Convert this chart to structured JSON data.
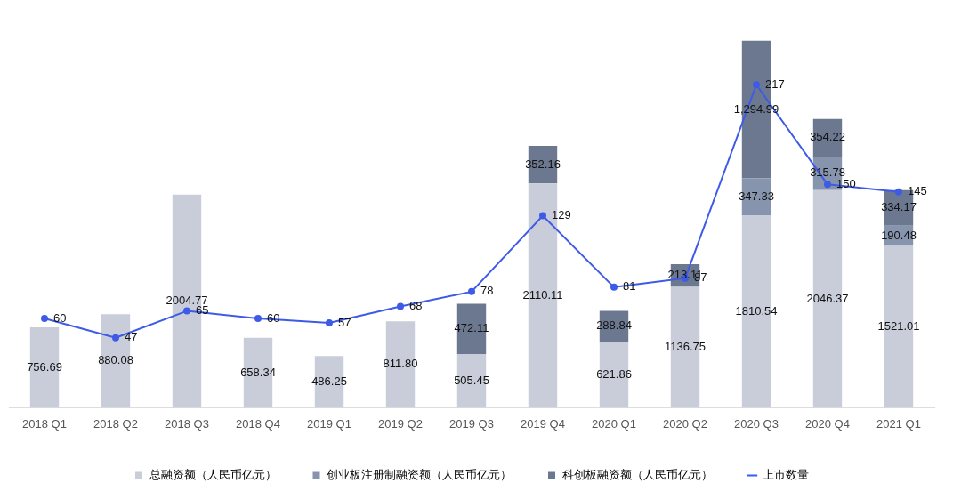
{
  "chart_data": {
    "type": "bar",
    "stacked": true,
    "legend": "bottom",
    "grid": false,
    "tick_labels": "x",
    "marker": "circle",
    "line_style": "solid",
    "categories": [
      "2018 Q1",
      "2018 Q2",
      "2018 Q3",
      "2018 Q4",
      "2019 Q1",
      "2019 Q2",
      "2019 Q3",
      "2019 Q4",
      "2020 Q1",
      "2020 Q2",
      "2020 Q3",
      "2020 Q4",
      "2021 Q1"
    ],
    "series": [
      {
        "name": "总融资额（人民币亿元）",
        "color": "#c8cdd9",
        "values": [
          756.69,
          880.08,
          2004.77,
          658.34,
          486.25,
          811.8,
          505.45,
          2110.11,
          621.86,
          1136.75,
          1810.54,
          2046.37,
          1521.01
        ],
        "value_labels": [
          "756.69",
          "880.08",
          "2004.77",
          "658.34",
          "486.25",
          "811.80",
          "505.45",
          "2110.11",
          "621.86",
          "1136.75",
          "1810.54",
          "2046.37",
          "1521.01"
        ]
      },
      {
        "name": "创业板注册制融资额（人民币亿元）",
        "color": "#8794ad",
        "values": [
          null,
          null,
          null,
          null,
          null,
          null,
          null,
          null,
          null,
          null,
          347.33,
          315.78,
          190.48
        ],
        "value_labels": [
          null,
          null,
          null,
          null,
          null,
          null,
          null,
          null,
          null,
          null,
          "347.33",
          "315.78",
          "190.48"
        ]
      },
      {
        "name": "科创板融资额（人民币亿元）",
        "color": "#6c7890",
        "values": [
          null,
          null,
          null,
          null,
          null,
          null,
          472.11,
          352.16,
          288.84,
          213.11,
          1294.99,
          354.22,
          334.17
        ],
        "value_labels": [
          null,
          null,
          null,
          null,
          null,
          null,
          "472.11",
          "352.16",
          "288.84",
          "213.11",
          "1,294.99",
          "354.22",
          "334.17"
        ]
      },
      {
        "name": "上市数量",
        "type": "line",
        "axis": "y2",
        "color": "#3d5be6",
        "values": [
          60,
          47,
          65,
          60,
          57,
          68,
          78,
          129,
          81,
          87,
          217,
          150,
          145
        ],
        "value_labels": [
          "60",
          "47",
          "65",
          "60",
          "57",
          "68",
          "78",
          "129",
          "81",
          "87",
          "217",
          "150",
          "145"
        ]
      }
    ]
  }
}
